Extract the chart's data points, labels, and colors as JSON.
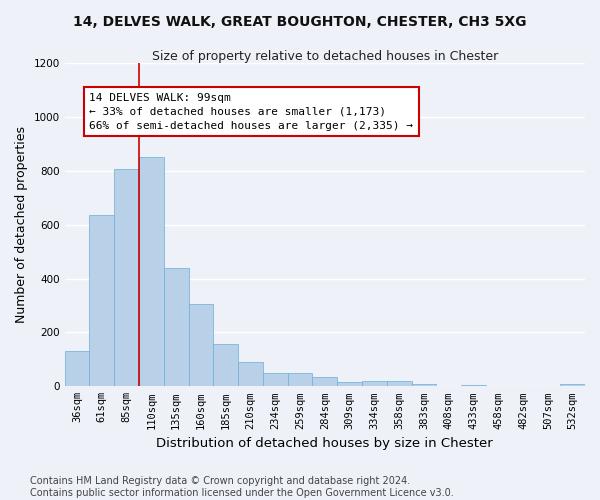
{
  "title_line1": "14, DELVES WALK, GREAT BOUGHTON, CHESTER, CH3 5XG",
  "title_line2": "Size of property relative to detached houses in Chester",
  "xlabel": "Distribution of detached houses by size in Chester",
  "ylabel": "Number of detached properties",
  "categories": [
    "36sqm",
    "61sqm",
    "85sqm",
    "110sqm",
    "135sqm",
    "160sqm",
    "185sqm",
    "210sqm",
    "234sqm",
    "259sqm",
    "284sqm",
    "309sqm",
    "334sqm",
    "358sqm",
    "383sqm",
    "408sqm",
    "433sqm",
    "458sqm",
    "482sqm",
    "507sqm",
    "532sqm"
  ],
  "values": [
    130,
    635,
    805,
    850,
    440,
    305,
    158,
    90,
    50,
    48,
    35,
    15,
    20,
    18,
    10,
    2,
    5,
    2,
    0,
    0,
    10
  ],
  "bar_color": "#b8d0e8",
  "bar_edge_color": "#6baed6",
  "vline_color": "#cc0000",
  "annotation_text": "14 DELVES WALK: 99sqm\n← 33% of detached houses are smaller (1,173)\n66% of semi-detached houses are larger (2,335) →",
  "annotation_box_facecolor": "#ffffff",
  "annotation_box_edgecolor": "#cc0000",
  "ylim": [
    0,
    1200
  ],
  "yticks": [
    0,
    200,
    400,
    600,
    800,
    1000,
    1200
  ],
  "footer_line1": "Contains HM Land Registry data © Crown copyright and database right 2024.",
  "footer_line2": "Contains public sector information licensed under the Open Government Licence v3.0.",
  "bg_color": "#eef2f8",
  "plot_bg_color": "#eef2f8",
  "grid_color": "#ffffff",
  "title_fontsize": 10,
  "subtitle_fontsize": 9,
  "axis_label_fontsize": 9,
  "tick_fontsize": 7.5,
  "annotation_fontsize": 8,
  "footer_fontsize": 7
}
